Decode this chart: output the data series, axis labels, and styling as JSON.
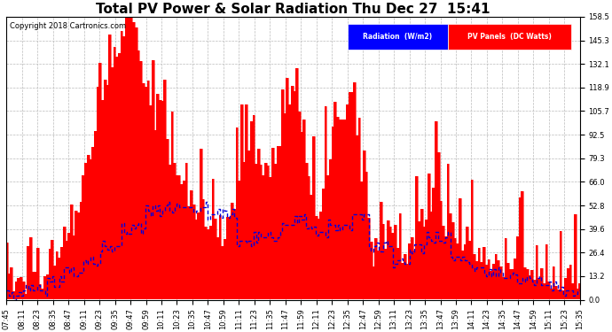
{
  "title": "Total PV Power & Solar Radiation Thu Dec 27  15:41",
  "copyright": "Copyright 2018 Cartronics.com",
  "legend_radiation": "Radiation  (W/m2)",
  "legend_pv": "PV Panels  (DC Watts)",
  "yticks": [
    0.0,
    13.2,
    26.4,
    39.6,
    52.8,
    66.0,
    79.3,
    92.5,
    105.7,
    118.9,
    132.1,
    145.3,
    158.5
  ],
  "ymax": 158.5,
  "ymin": 0.0,
  "bg_color": "#ffffff",
  "plot_bg_color": "#ffffff",
  "grid_color": "#bbbbbb",
  "radiation_color": "#0000dd",
  "pv_color": "#ff0000",
  "title_fontsize": 11,
  "copyright_fontsize": 6,
  "tick_fontsize": 6,
  "figwidth": 6.9,
  "figheight": 3.75,
  "dpi": 100
}
